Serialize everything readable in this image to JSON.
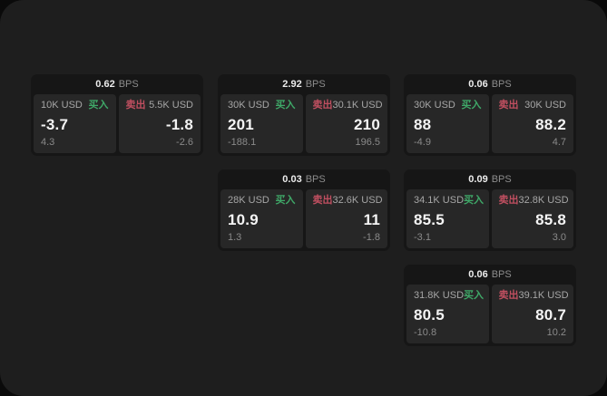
{
  "page": {
    "bps_unit": "BPS",
    "buy_label": "买入",
    "sell_label": "卖出",
    "colors": {
      "buy_green": "#3fa868",
      "sell_red": "#c04f60",
      "surface": "#1e1e1e",
      "card": "#161616",
      "panel": "#272727"
    }
  },
  "cards": [
    {
      "col": 1,
      "row": 1,
      "bps": "0.62",
      "buy_amount": "10K USD",
      "buy_value": "-3.7",
      "buy_sub": "4.3",
      "sell_amount": "5.5K USD",
      "sell_value": "-1.8",
      "sell_sub": "-2.6"
    },
    {
      "col": 2,
      "row": 1,
      "bps": "2.92",
      "buy_amount": "30K USD",
      "buy_value": "201",
      "buy_sub": "-188.1",
      "sell_amount": "30.1K USD",
      "sell_value": "210",
      "sell_sub": "196.5"
    },
    {
      "col": 3,
      "row": 1,
      "bps": "0.06",
      "buy_amount": "30K USD",
      "buy_value": "88",
      "buy_sub": "-4.9",
      "sell_amount": "30K USD",
      "sell_value": "88.2",
      "sell_sub": "4.7"
    },
    {
      "col": 2,
      "row": 2,
      "bps": "0.03",
      "buy_amount": "28K USD",
      "buy_value": "10.9",
      "buy_sub": "1.3",
      "sell_amount": "32.6K USD",
      "sell_value": "11",
      "sell_sub": "-1.8"
    },
    {
      "col": 3,
      "row": 2,
      "bps": "0.09",
      "buy_amount": "34.1K USD",
      "buy_value": "85.5",
      "buy_sub": "-3.1",
      "sell_amount": "32.8K USD",
      "sell_value": "85.8",
      "sell_sub": "3.0"
    },
    {
      "col": 3,
      "row": 3,
      "bps": "0.06",
      "buy_amount": "31.8K USD",
      "buy_value": "80.5",
      "buy_sub": "-10.8",
      "sell_amount": "39.1K USD",
      "sell_value": "80.7",
      "sell_sub": "10.2"
    }
  ]
}
